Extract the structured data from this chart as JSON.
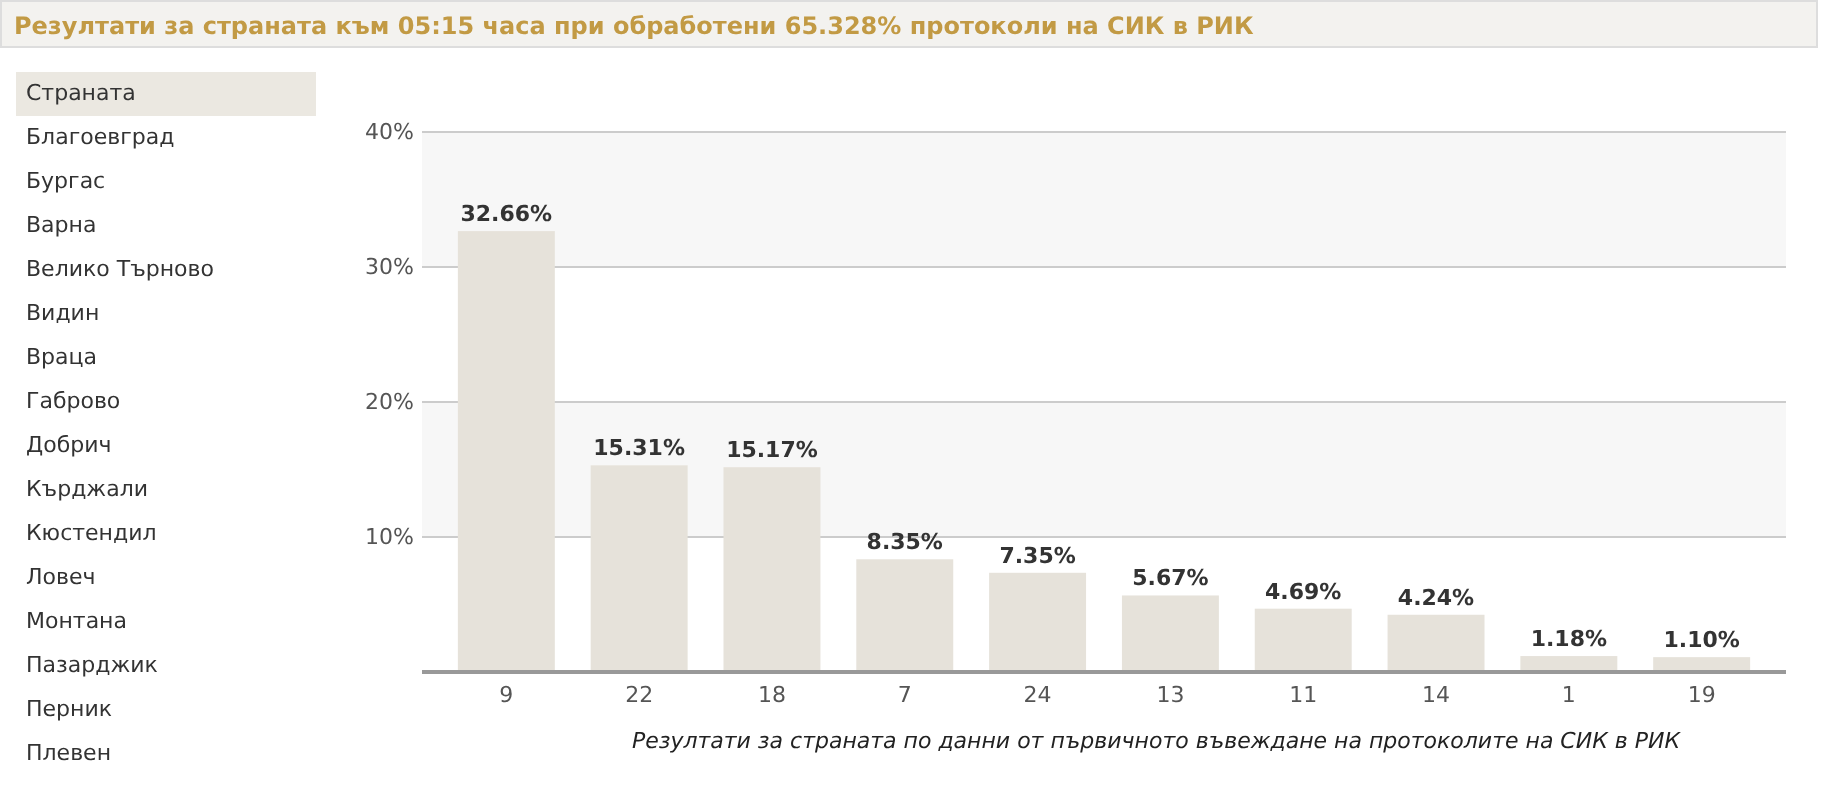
{
  "chart_data": [
    {
      "type": "other",
      "title": "Резултати за страната към 05:15 часа при обработени 65.328% протоколи на СИК в РИК",
      "annotations": [
        "Страната",
        "Благоевград",
        "Бургас",
        "Варна",
        "Велико Търново",
        "Видин",
        "Враца",
        "Габрово",
        "Добрич",
        "Кърджали",
        "Кюстендил",
        "Ловеч",
        "Монтана",
        "Пазарджик",
        "Перник",
        "Плевен"
      ]
    },
    {
      "type": "bar",
      "categories": [
        "9",
        "22",
        "18",
        "7",
        "24",
        "13",
        "11",
        "14",
        "1",
        "19"
      ],
      "values": [
        32.66,
        15.31,
        15.17,
        8.35,
        7.35,
        5.67,
        4.69,
        4.24,
        1.18,
        1.1
      ],
      "value_labels": [
        "32.66%",
        "15.31%",
        "15.17%",
        "8.35%",
        "7.35%",
        "5.67%",
        "4.69%",
        "4.24%",
        "1.18%",
        "1.10%"
      ],
      "color": "#e6e2da",
      "ylim": [
        0,
        40
      ],
      "yticks": [
        {
          "value": 10,
          "label": "10%"
        },
        {
          "value": 20,
          "label": "20%"
        },
        {
          "value": 30,
          "label": "30%"
        },
        {
          "value": 40,
          "label": "40%"
        }
      ],
      "grid": "y",
      "bands": [
        {
          "axis": "y",
          "from": 10,
          "to": 20,
          "color": "#f7f7f7"
        },
        {
          "axis": "y",
          "from": 30,
          "to": 40,
          "color": "#f7f7f7"
        }
      ],
      "annotations": [
        "Резултати за страната по данни от първичното въвеждане на протоколите на СИК в РИК"
      ]
    }
  ]
}
